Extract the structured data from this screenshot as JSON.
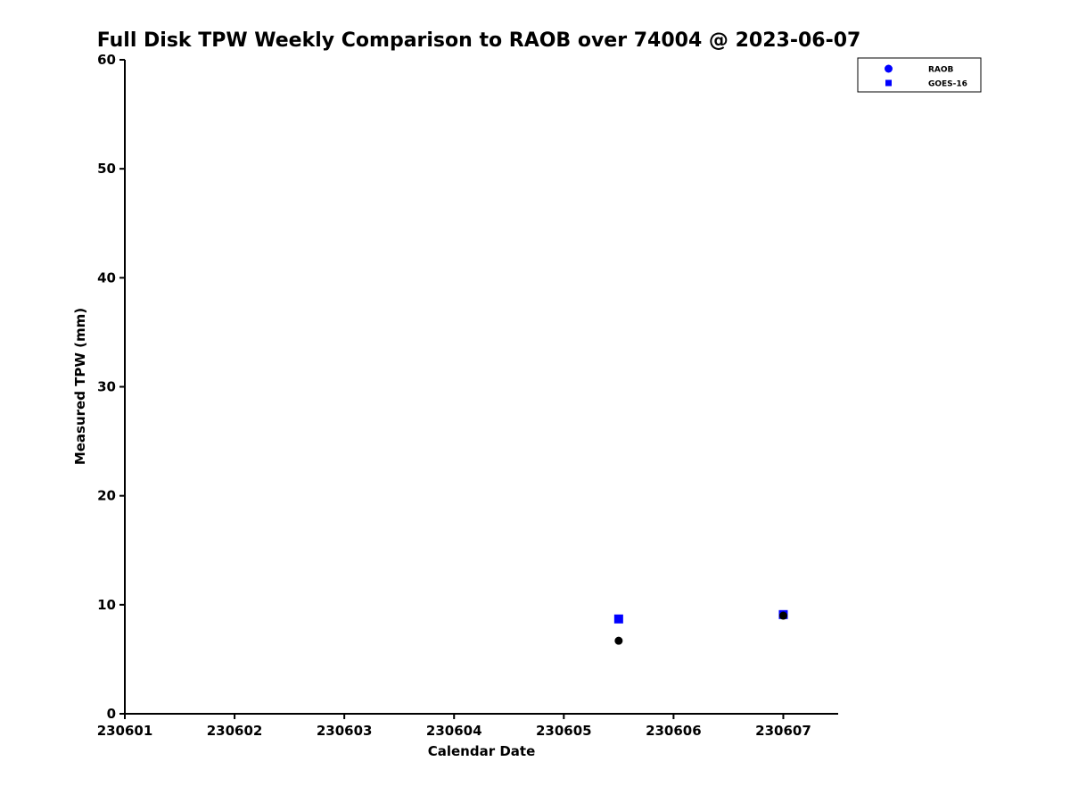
{
  "figure": {
    "background": "#ffffff",
    "axis_color": "#000000"
  },
  "chart_data": {
    "type": "scatter",
    "title": "Full Disk TPW Weekly Comparison to RAOB over 74004 @ 2023-06-07",
    "xlabel": "Calendar Date",
    "ylabel": "Measured TPW (mm)",
    "xlim": [
      230601,
      230607.5
    ],
    "ylim": [
      0,
      60
    ],
    "xticks": [
      230601,
      230602,
      230603,
      230604,
      230605,
      230606,
      230607
    ],
    "yticks": [
      0,
      10,
      20,
      30,
      40,
      50,
      60
    ],
    "grid": false,
    "legend": {
      "position": "top-right",
      "border_color": "#000000",
      "background": "#ffffff"
    },
    "series": [
      {
        "name": "RAOB",
        "marker": "circle",
        "color": "#000000",
        "legend_color": "#0000ff",
        "points": [
          {
            "x": 230605.5,
            "y": 6.7
          },
          {
            "x": 230607.0,
            "y": 9.0
          }
        ]
      },
      {
        "name": "GOES-16",
        "marker": "square",
        "color": "#0000ff",
        "legend_color": "#0000ff",
        "points": [
          {
            "x": 230605.5,
            "y": 8.7
          },
          {
            "x": 230607.0,
            "y": 9.1
          }
        ]
      }
    ]
  }
}
